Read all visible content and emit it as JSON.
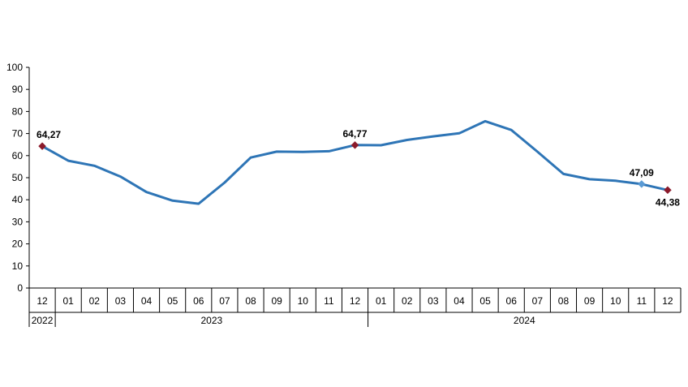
{
  "chart_data": {
    "type": "line",
    "title": "",
    "xlabel": "",
    "ylabel": "",
    "ylim": [
      0,
      100
    ],
    "yticks": [
      0,
      10,
      20,
      30,
      40,
      50,
      60,
      70,
      80,
      90,
      100
    ],
    "grid": false,
    "legend": "none",
    "categories": [
      "12",
      "01",
      "02",
      "03",
      "04",
      "05",
      "06",
      "07",
      "08",
      "09",
      "10",
      "11",
      "12",
      "01",
      "02",
      "03",
      "04",
      "05",
      "06",
      "07",
      "08",
      "09",
      "10",
      "11",
      "12"
    ],
    "year_groups": [
      {
        "label": "2022",
        "count": 1
      },
      {
        "label": "2023",
        "count": 12
      },
      {
        "label": "2024",
        "count": 12
      }
    ],
    "series": [
      {
        "values": [
          64.27,
          57.7,
          55.4,
          50.5,
          43.5,
          39.6,
          38.2,
          47.8,
          59.1,
          61.8,
          61.7,
          62.0,
          64.77,
          64.7,
          67.1,
          68.7,
          70.1,
          75.6,
          71.6,
          61.8,
          51.7,
          49.3,
          48.6,
          47.09,
          44.38
        ],
        "color": "#2e75b6"
      }
    ],
    "data_labels": [
      {
        "index": 0,
        "text": "64,27",
        "position": "above"
      },
      {
        "index": 12,
        "text": "64,77",
        "position": "above"
      },
      {
        "index": 23,
        "text": "47,09",
        "position": "above"
      },
      {
        "index": 24,
        "text": "44,38",
        "position": "below"
      }
    ],
    "markers": [
      {
        "index": 0,
        "color": "#8b1a2b"
      },
      {
        "index": 12,
        "color": "#8b1a2b"
      },
      {
        "index": 23,
        "color": "#5b9bd5"
      },
      {
        "index": 24,
        "color": "#8b1a2b"
      }
    ]
  }
}
